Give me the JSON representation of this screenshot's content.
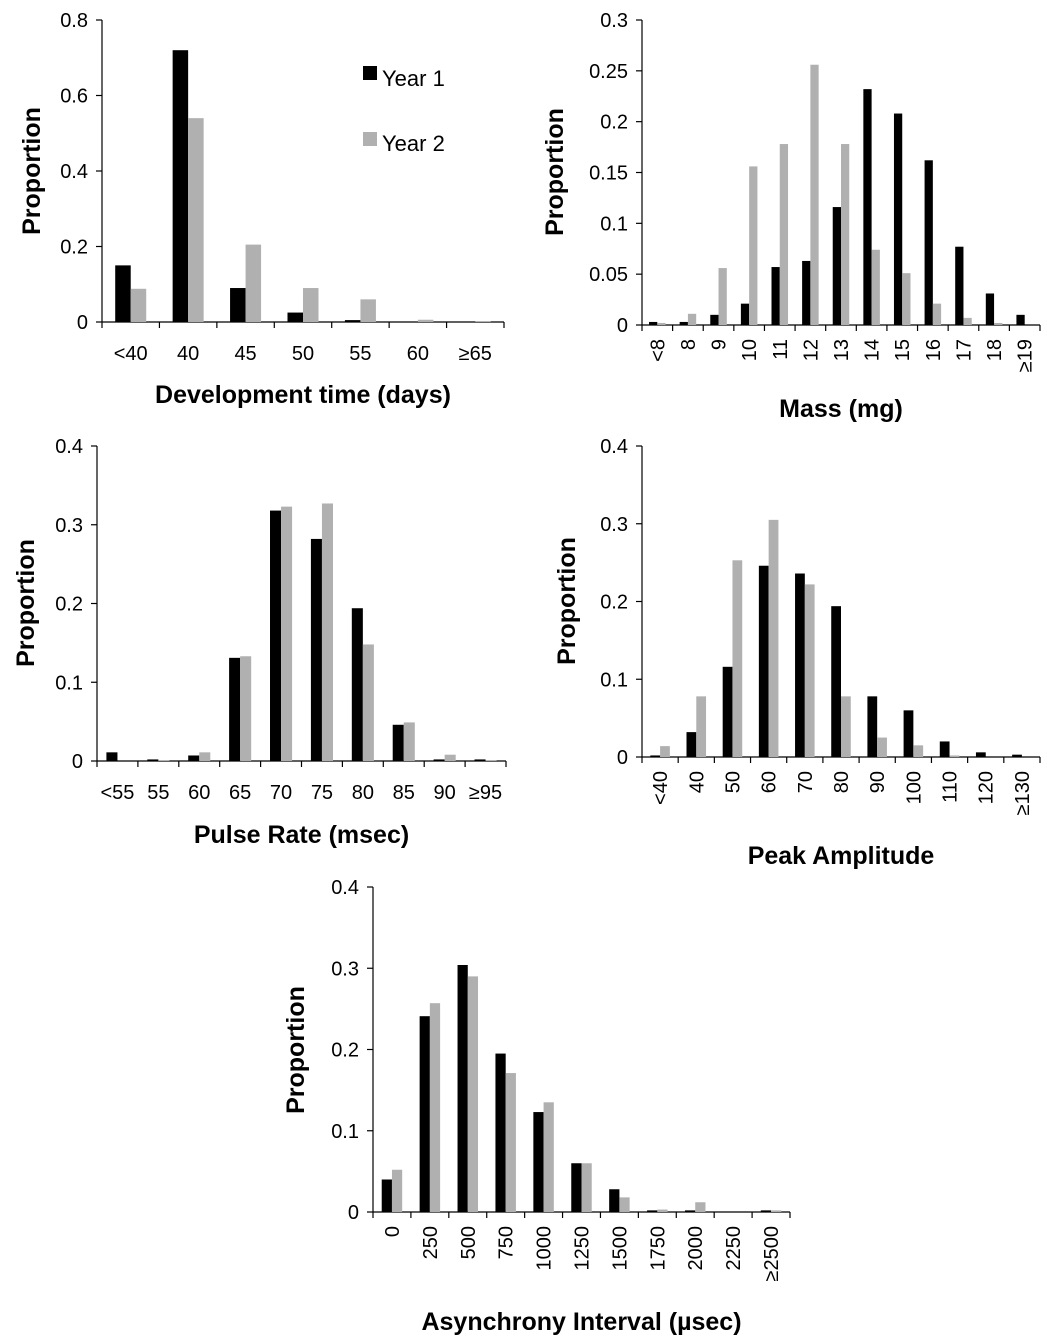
{
  "legend": {
    "series": [
      "Year 1",
      "Year 2"
    ]
  },
  "colors": {
    "year1": "#000000",
    "year2": "#b0b0b0"
  },
  "chart_data": [
    {
      "type": "bar",
      "categories": [
        "<40",
        "40",
        "45",
        "50",
        "55",
        "60",
        "≥65"
      ],
      "series": [
        {
          "name": "Year 1",
          "values": [
            0.15,
            0.72,
            0.09,
            0.025,
            0.005,
            0.0,
            0.0
          ]
        },
        {
          "name": "Year 2",
          "values": [
            0.088,
            0.54,
            0.205,
            0.09,
            0.06,
            0.006,
            0.002
          ]
        }
      ],
      "xlabel": "Development time (days)",
      "ylabel": "Proportion",
      "ylim": [
        0,
        0.8
      ],
      "yticks": [
        "0",
        "0.2",
        "0.4",
        "0.6",
        "0.8"
      ],
      "legend": "top-right",
      "grid": false
    },
    {
      "type": "bar",
      "categories": [
        "<8",
        "8",
        "9",
        "10",
        "11",
        "12",
        "13",
        "14",
        "15",
        "16",
        "17",
        "18",
        "≥19"
      ],
      "series": [
        {
          "name": "Year 1",
          "values": [
            0.003,
            0.003,
            0.01,
            0.021,
            0.057,
            0.063,
            0.116,
            0.232,
            0.208,
            0.162,
            0.077,
            0.031,
            0.01
          ]
        },
        {
          "name": "Year 2",
          "values": [
            0.002,
            0.011,
            0.056,
            0.156,
            0.178,
            0.256,
            0.178,
            0.074,
            0.051,
            0.021,
            0.007,
            0.002,
            0.0
          ]
        }
      ],
      "xlabel": "Mass (mg)",
      "ylabel": "Proportion",
      "ylim": [
        0,
        0.3
      ],
      "yticks": [
        "0",
        "0.05",
        "0.1",
        "0.15",
        "0.2",
        "0.25",
        "0.3"
      ],
      "grid": false
    },
    {
      "type": "bar",
      "categories": [
        "<55",
        "55",
        "60",
        "65",
        "70",
        "75",
        "80",
        "85",
        "90",
        "≥95"
      ],
      "series": [
        {
          "name": "Year 1",
          "values": [
            0.011,
            0.002,
            0.007,
            0.131,
            0.318,
            0.282,
            0.194,
            0.046,
            0.002,
            0.002
          ]
        },
        {
          "name": "Year 2",
          "values": [
            0.0,
            0.001,
            0.011,
            0.133,
            0.323,
            0.327,
            0.148,
            0.049,
            0.008,
            0.001
          ]
        }
      ],
      "xlabel": "Pulse Rate (msec)",
      "ylabel": "Proportion",
      "ylim": [
        0,
        0.4
      ],
      "yticks": [
        "0",
        "0.1",
        "0.2",
        "0.3",
        "0.4"
      ],
      "grid": false
    },
    {
      "type": "bar",
      "categories": [
        "<40",
        "40",
        "50",
        "60",
        "70",
        "80",
        "90",
        "100",
        "110",
        "120",
        "≥130"
      ],
      "series": [
        {
          "name": "Year 1",
          "values": [
            0.002,
            0.032,
            0.116,
            0.246,
            0.236,
            0.194,
            0.078,
            0.06,
            0.02,
            0.006,
            0.003
          ]
        },
        {
          "name": "Year 2",
          "values": [
            0.014,
            0.078,
            0.253,
            0.305,
            0.222,
            0.078,
            0.025,
            0.015,
            0.002,
            0.0,
            0.0
          ]
        }
      ],
      "xlabel": "Peak Amplitude",
      "ylabel": "Proportion",
      "ylim": [
        0,
        0.4
      ],
      "yticks": [
        "0",
        "0.1",
        "0.2",
        "0.3",
        "0.4"
      ],
      "grid": false
    },
    {
      "type": "bar",
      "categories": [
        "0",
        "250",
        "500",
        "750",
        "1000",
        "1250",
        "1500",
        "1750",
        "2000",
        "2250",
        "≥2500"
      ],
      "series": [
        {
          "name": "Year 1",
          "values": [
            0.04,
            0.241,
            0.304,
            0.195,
            0.123,
            0.06,
            0.028,
            0.002,
            0.002,
            0.0,
            0.002
          ]
        },
        {
          "name": "Year 2",
          "values": [
            0.052,
            0.257,
            0.29,
            0.171,
            0.135,
            0.06,
            0.018,
            0.003,
            0.012,
            0.0,
            0.002
          ]
        }
      ],
      "xlabel": "Asynchrony Interval (µsec)",
      "ylabel": "Proportion",
      "ylim": [
        0,
        0.4
      ],
      "yticks": [
        "0",
        "0.1",
        "0.2",
        "0.3",
        "0.4"
      ],
      "grid": false
    }
  ]
}
